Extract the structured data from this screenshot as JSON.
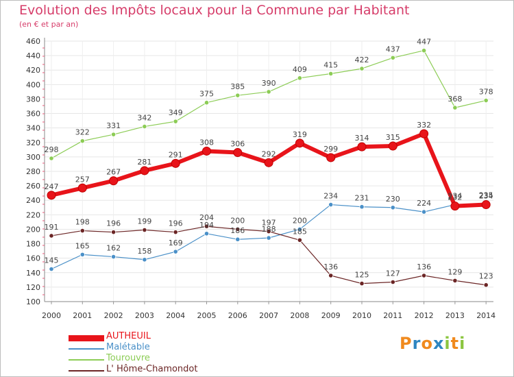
{
  "title": "Evolution des Impôts locaux pour la Commune par Habitant",
  "subtitle": "(en € et par an)",
  "logo": {
    "text": "Proxiti",
    "letter_colors": [
      "#f08a1e",
      "#2e86c1",
      "#f08a1e",
      "#2e86c1",
      "#8bc53f",
      "#f08a1e",
      "#8bc53f"
    ]
  },
  "chart_data": {
    "type": "line",
    "title": "Evolution des Impôts locaux pour la Commune par Habitant",
    "subtitle": "(en € et par an)",
    "xlabel": "",
    "ylabel": "",
    "x": [
      "2000",
      "2001",
      "2002",
      "2003",
      "2004",
      "2005",
      "2006",
      "2007",
      "2008",
      "2009",
      "2010",
      "2011",
      "2012",
      "2013",
      "2014"
    ],
    "ylim": [
      100,
      460
    ],
    "yticks": [
      100,
      120,
      140,
      160,
      180,
      200,
      220,
      240,
      260,
      280,
      300,
      320,
      340,
      360,
      380,
      400,
      420,
      440,
      460
    ],
    "grid": true,
    "legend_position": "bottom-left",
    "series": [
      {
        "name": "AUTHEUIL",
        "color": "#e8141a",
        "values": [
          247,
          257,
          267,
          281,
          291,
          308,
          306,
          292,
          319,
          299,
          314,
          315,
          332,
          232,
          234
        ]
      },
      {
        "name": "Malétable",
        "color": "#4a90c8",
        "values": [
          145,
          165,
          162,
          158,
          169,
          194,
          186,
          188,
          200,
          234,
          231,
          230,
          224,
          234,
          235
        ]
      },
      {
        "name": "Tourouvre",
        "color": "#8ccc55",
        "values": [
          298,
          322,
          331,
          342,
          349,
          375,
          385,
          390,
          409,
          415,
          422,
          437,
          447,
          368,
          378
        ]
      },
      {
        "name": "L' Hôme-Chamondot",
        "color": "#6b2525",
        "values": [
          191,
          198,
          196,
          199,
          196,
          204,
          200,
          197,
          185,
          136,
          125,
          127,
          136,
          129,
          123
        ]
      }
    ],
    "data_labels": [
      {
        "series": 0,
        "labels": [
          "247",
          "257",
          "267",
          "281",
          "291",
          "308",
          "306",
          "292",
          "319",
          "299",
          "314",
          "315",
          "332",
          "232",
          "234"
        ]
      },
      {
        "series": 1,
        "labels": [
          "145",
          "165",
          "162",
          "158",
          "169",
          "194",
          "186",
          "188",
          "200",
          "234",
          "231",
          "230",
          "224",
          "234",
          "235"
        ]
      },
      {
        "series": 2,
        "labels": [
          "298",
          "322",
          "331",
          "342",
          "349",
          "375",
          "385",
          "390",
          "409",
          "415",
          "422",
          "437",
          "447",
          "368",
          "378"
        ]
      },
      {
        "series": 3,
        "labels": [
          "191",
          "198",
          "196",
          "199",
          "196",
          "204",
          "200",
          "197",
          "185",
          "136",
          "125",
          "127",
          "136",
          "129",
          "123"
        ]
      }
    ]
  }
}
